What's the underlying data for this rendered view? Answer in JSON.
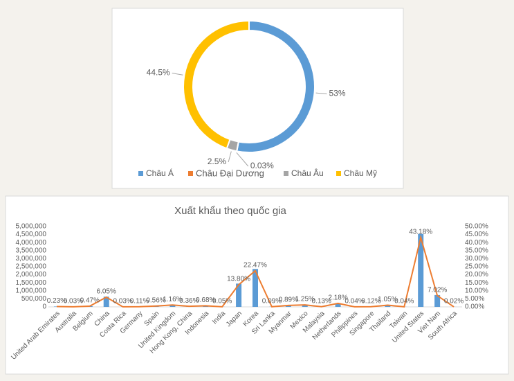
{
  "chart_data": [
    {
      "type": "donut",
      "categories": [
        "Châu Á",
        "Châu Đại Dương",
        "Châu Âu",
        "Châu Mỹ"
      ],
      "values": [
        53,
        0.03,
        2.5,
        44.5
      ],
      "value_labels": [
        "53%",
        "0.03%",
        "2.5%",
        "44.5%"
      ],
      "colors": [
        "#5b9bd5",
        "#ed7d31",
        "#a5a5a5",
        "#ffc000"
      ],
      "legend": "bottom"
    },
    {
      "type": "combo",
      "title": "Xuất khẩu theo quốc gia",
      "categories": [
        "United Arab Emirates",
        "Australia",
        "Belgium",
        "China",
        "Costa Rica",
        "Germany",
        "Spain",
        "United Kingdom",
        "Hong Kong, China",
        "Indonesia",
        "India",
        "Japan",
        "Korea",
        "Sri Lanka",
        "Myanmar",
        "Mexico",
        "Malaysia",
        "Netherlands",
        "Philippines",
        "Singapore",
        "Thailand",
        "Taiwan",
        "United States",
        "Viet Nam",
        "South Africa"
      ],
      "series": [
        {
          "type": "bar",
          "color": "#5b9bd5",
          "values": [
            24000,
            3000,
            49000,
            635000,
            3000,
            12000,
            59000,
            122000,
            38000,
            71000,
            5000,
            1449000,
            2359000,
            9000,
            93000,
            131000,
            14000,
            229000,
            4000,
            13000,
            110000,
            4000,
            4534000,
            737000,
            2000
          ]
        },
        {
          "type": "line",
          "color": "#ed7d31",
          "axis": "y2",
          "values": [
            0.23,
            0.03,
            0.47,
            6.05,
            0.03,
            0.11,
            0.56,
            1.16,
            0.36,
            0.68,
            0.05,
            13.8,
            22.47,
            0.09,
            0.89,
            1.25,
            0.13,
            2.18,
            0.04,
            0.12,
            1.05,
            0.04,
            43.18,
            7.02,
            0.02
          ],
          "value_labels": [
            "0.23%",
            "0.03%",
            "0.47%",
            "6.05%",
            "0.03%",
            "0.11%",
            "0.56%",
            "1.16%",
            "0.36%",
            "0.68%",
            "0.05%",
            "13.80%",
            "22.47%",
            "0.09%",
            "0.89%",
            "1.25%",
            "0.13%",
            "2.18%",
            "0.04%",
            "0.12%",
            "1.05%",
            "0.04%",
            "43.18%",
            "7.02%",
            "0.02%"
          ]
        }
      ],
      "ylim": [
        0,
        5000000
      ],
      "yticks": [
        0,
        {
          "value": 500000,
          "label": "500,000"
        },
        {
          "value": 1000000,
          "label": "1,000,000"
        },
        {
          "value": 1500000,
          "label": "1,500,000"
        },
        {
          "value": 2000000,
          "label": "2,000,000"
        },
        {
          "value": 2500000,
          "label": "2,500,000"
        },
        {
          "value": 3000000,
          "label": "3,000,000"
        },
        {
          "value": 3500000,
          "label": "3,500,000"
        },
        {
          "value": 4000000,
          "label": "4,000,000"
        },
        {
          "value": 4500000,
          "label": "4,500,000"
        },
        {
          "value": 5000000,
          "label": "5,000,000"
        }
      ],
      "y2lim": [
        0,
        50
      ],
      "y2ticks": [
        {
          "value": 0,
          "label": "0.00%"
        },
        {
          "value": 5,
          "label": "5.00%"
        },
        {
          "value": 10,
          "label": "10.00%"
        },
        {
          "value": 15,
          "label": "15.00%"
        },
        {
          "value": 20,
          "label": "20.00%"
        },
        {
          "value": 25,
          "label": "25.00%"
        },
        {
          "value": 30,
          "label": "30.00%"
        },
        {
          "value": 35,
          "label": "35.00%"
        },
        {
          "value": 40,
          "label": "40.00%"
        },
        {
          "value": 45,
          "label": "45.00%"
        },
        {
          "value": 50,
          "label": "50.00%"
        }
      ],
      "grid": false
    }
  ]
}
